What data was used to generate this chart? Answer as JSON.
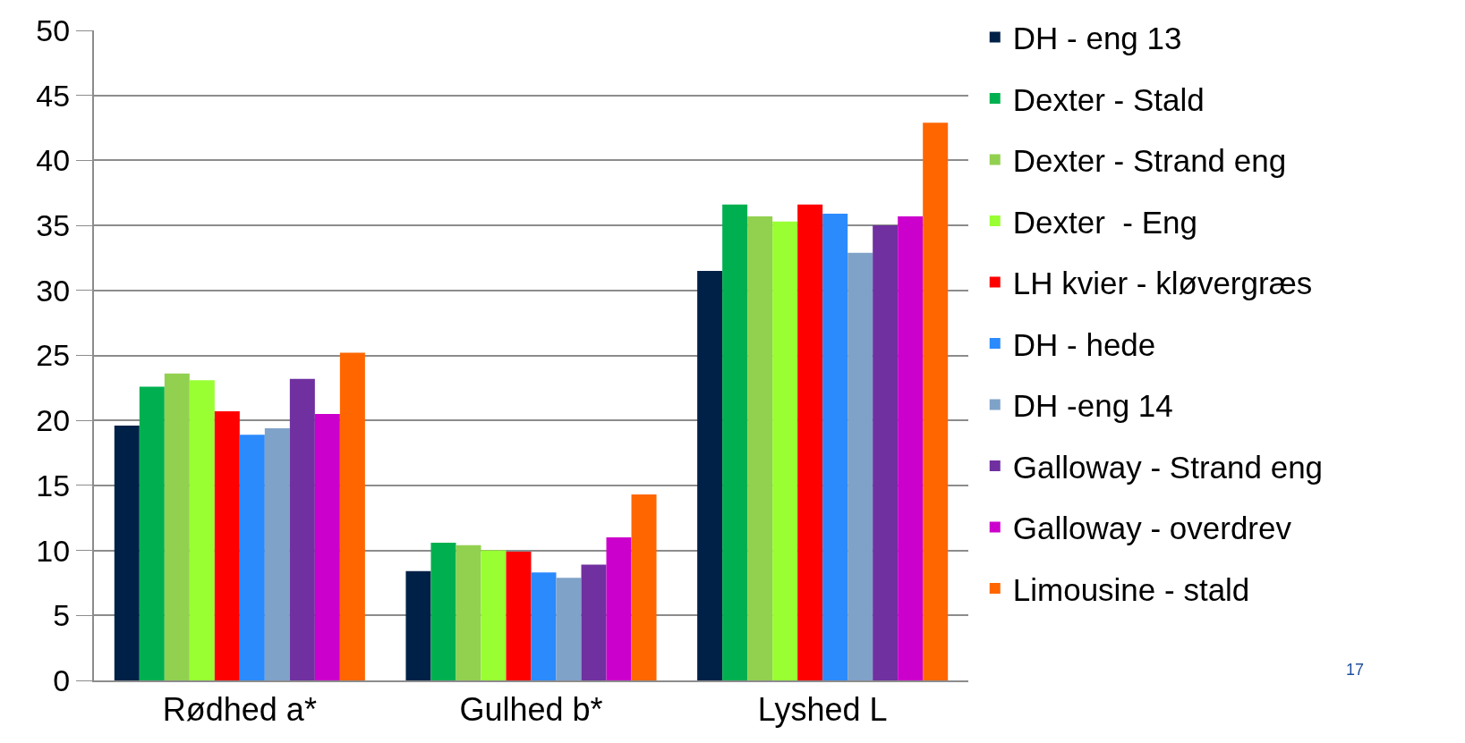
{
  "chart_data": {
    "type": "bar",
    "categories": [
      "Rødhed a*",
      "Gulhed b*",
      "Lyshed L"
    ],
    "series": [
      {
        "name": "DH - eng 13",
        "color": "#002147",
        "values": [
          19.6,
          8.4,
          31.5
        ]
      },
      {
        "name": "Dexter - Stald",
        "color": "#00b050",
        "values": [
          22.6,
          10.6,
          36.6
        ]
      },
      {
        "name": "Dexter - Strand eng",
        "color": "#92d050",
        "values": [
          23.6,
          10.4,
          35.7
        ]
      },
      {
        "name": "Dexter  - Eng",
        "color": "#99ff33",
        "values": [
          23.1,
          10.0,
          35.3
        ]
      },
      {
        "name": "LH kvier - kløvergræs",
        "color": "#ff0000",
        "values": [
          20.7,
          9.9,
          36.6
        ]
      },
      {
        "name": "DH - hede",
        "color": "#2b8afc",
        "values": [
          18.9,
          8.3,
          35.9
        ]
      },
      {
        "name": "DH -eng 14",
        "color": "#7fa2c8",
        "values": [
          19.4,
          7.9,
          32.9
        ]
      },
      {
        "name": "Galloway - Strand eng",
        "color": "#7030a0",
        "values": [
          23.2,
          8.9,
          35.0
        ]
      },
      {
        "name": "Galloway - overdrev",
        "color": "#cc00cc",
        "values": [
          20.5,
          11.0,
          35.7
        ]
      },
      {
        "name": "Limousine - stald",
        "color": "#ff6600",
        "values": [
          25.2,
          14.3,
          42.9
        ]
      }
    ],
    "ylim": [
      0,
      50
    ],
    "yticks": [
      0,
      5,
      10,
      15,
      20,
      25,
      30,
      35,
      40,
      45,
      50
    ],
    "grid": "y",
    "legend": "right",
    "annotations": [
      "17"
    ]
  }
}
